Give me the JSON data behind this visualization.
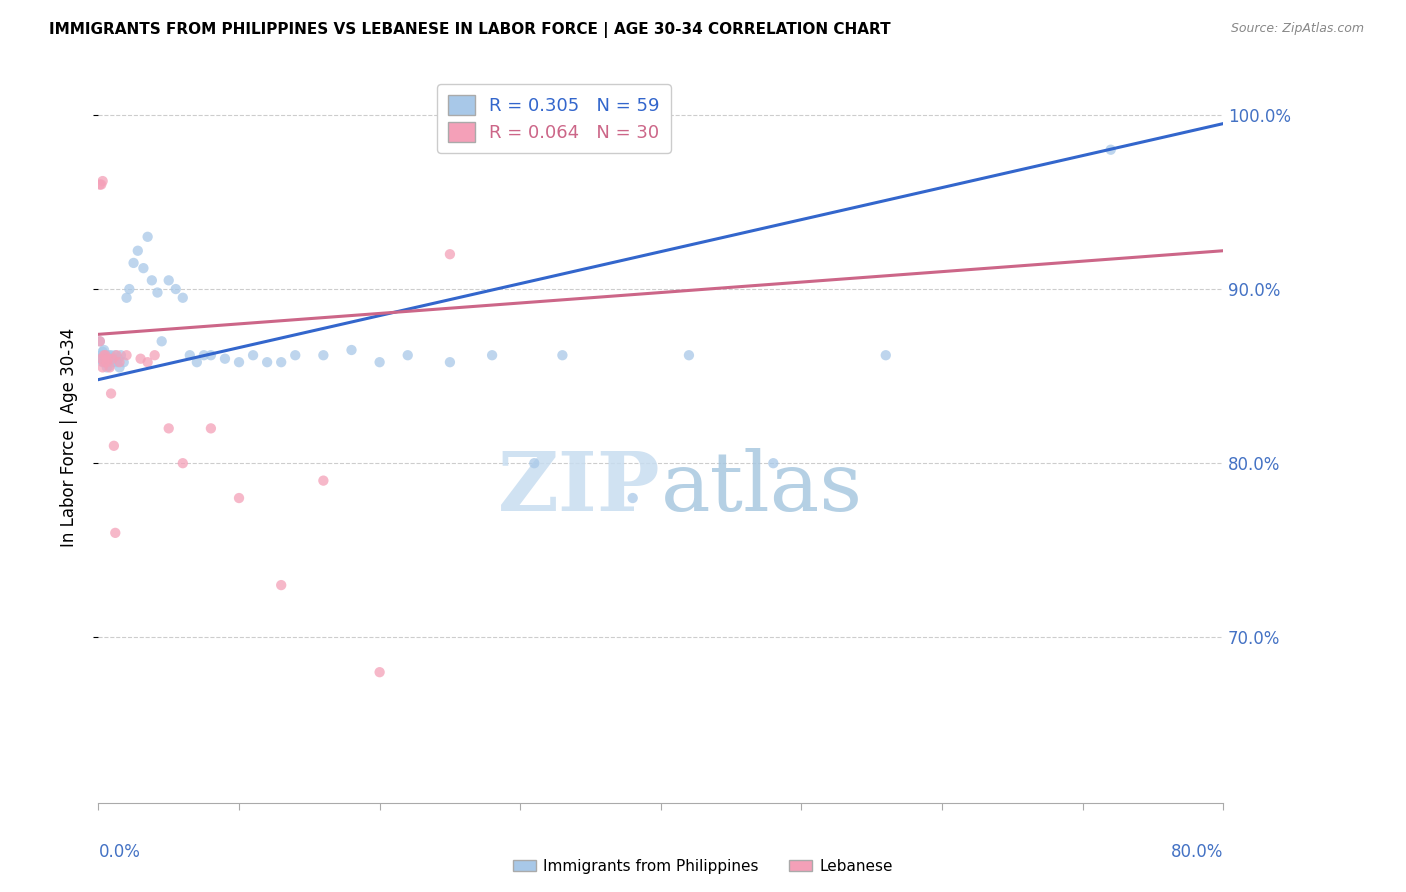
{
  "title": "IMMIGRANTS FROM PHILIPPINES VS LEBANESE IN LABOR FORCE | AGE 30-34 CORRELATION CHART",
  "source": "Source: ZipAtlas.com",
  "ylabel": "In Labor Force | Age 30-34",
  "legend1_label": "Immigrants from Philippines",
  "legend2_label": "Lebanese",
  "R_blue": 0.305,
  "N_blue": 59,
  "R_pink": 0.064,
  "N_pink": 30,
  "blue_color": "#a8c8e8",
  "pink_color": "#f4a0b8",
  "blue_line_color": "#3366cc",
  "pink_line_color": "#cc6688",
  "xlim": [
    0.0,
    0.8
  ],
  "ylim": [
    0.605,
    1.025
  ],
  "yticks": [
    0.7,
    0.8,
    0.9,
    1.0
  ],
  "ytick_labels": [
    "70.0%",
    "80.0%",
    "90.0%",
    "100.0%"
  ],
  "blue_x": [
    0.001,
    0.001,
    0.002,
    0.003,
    0.003,
    0.004,
    0.004,
    0.005,
    0.005,
    0.006,
    0.006,
    0.007,
    0.007,
    0.008,
    0.008,
    0.009,
    0.01,
    0.011,
    0.012,
    0.013,
    0.014,
    0.015,
    0.016,
    0.018,
    0.02,
    0.022,
    0.025,
    0.028,
    0.032,
    0.035,
    0.038,
    0.042,
    0.045,
    0.05,
    0.055,
    0.06,
    0.065,
    0.07,
    0.075,
    0.08,
    0.09,
    0.1,
    0.11,
    0.12,
    0.13,
    0.14,
    0.16,
    0.18,
    0.2,
    0.22,
    0.25,
    0.28,
    0.31,
    0.33,
    0.38,
    0.42,
    0.48,
    0.56,
    0.72
  ],
  "blue_y": [
    0.87,
    0.86,
    0.862,
    0.858,
    0.864,
    0.86,
    0.865,
    0.858,
    0.862,
    0.86,
    0.855,
    0.862,
    0.858,
    0.86,
    0.856,
    0.862,
    0.858,
    0.86,
    0.862,
    0.858,
    0.86,
    0.855,
    0.862,
    0.858,
    0.895,
    0.9,
    0.915,
    0.922,
    0.912,
    0.93,
    0.905,
    0.898,
    0.87,
    0.905,
    0.9,
    0.895,
    0.862,
    0.858,
    0.862,
    0.862,
    0.86,
    0.858,
    0.862,
    0.858,
    0.858,
    0.862,
    0.862,
    0.865,
    0.858,
    0.862,
    0.858,
    0.862,
    0.8,
    0.862,
    0.78,
    0.862,
    0.8,
    0.862,
    0.98
  ],
  "pink_x": [
    0.001,
    0.001,
    0.002,
    0.002,
    0.003,
    0.003,
    0.004,
    0.004,
    0.005,
    0.006,
    0.007,
    0.008,
    0.009,
    0.01,
    0.011,
    0.012,
    0.013,
    0.015,
    0.02,
    0.03,
    0.035,
    0.04,
    0.05,
    0.06,
    0.08,
    0.1,
    0.13,
    0.16,
    0.2,
    0.25
  ],
  "pink_y": [
    0.87,
    0.96,
    0.86,
    0.96,
    0.855,
    0.962,
    0.858,
    0.862,
    0.862,
    0.858,
    0.86,
    0.855,
    0.84,
    0.86,
    0.81,
    0.76,
    0.862,
    0.858,
    0.862,
    0.86,
    0.858,
    0.862,
    0.82,
    0.8,
    0.82,
    0.78,
    0.73,
    0.79,
    0.68,
    0.92
  ]
}
